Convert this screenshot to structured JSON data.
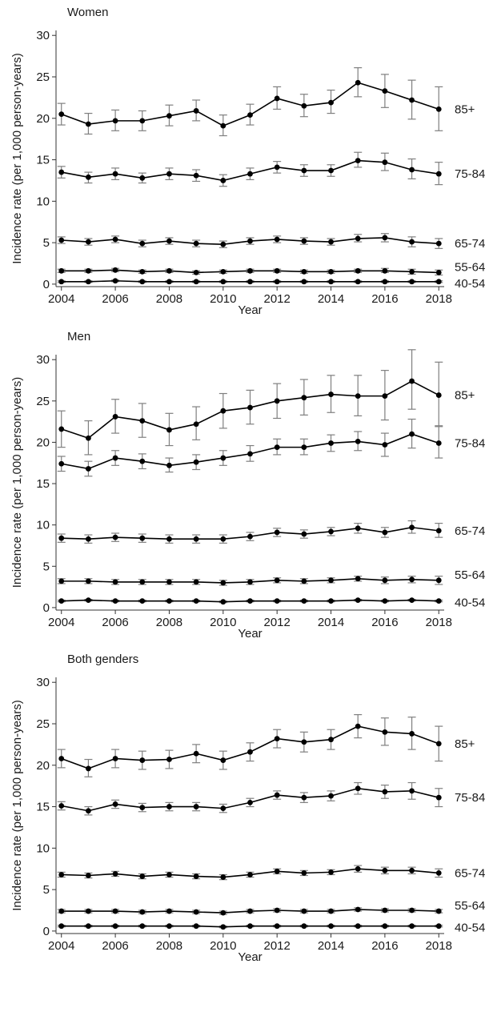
{
  "chart_data": [
    {
      "type": "line",
      "title": "Women",
      "xlabel": "Year",
      "ylabel": "Incidence rate (per 1,000 person-years)",
      "ylim": [
        0,
        30
      ],
      "yticks": [
        0,
        5,
        10,
        15,
        20,
        25,
        30
      ],
      "xticks": [
        2004,
        2006,
        2008,
        2010,
        2012,
        2014,
        2016,
        2018
      ],
      "x": [
        2004,
        2005,
        2006,
        2007,
        2008,
        2009,
        2010,
        2011,
        2012,
        2013,
        2014,
        2015,
        2016,
        2017,
        2018
      ],
      "series": [
        {
          "name": "85+",
          "values": [
            20.5,
            19.3,
            19.7,
            19.7,
            20.3,
            20.9,
            19.1,
            20.4,
            22.4,
            21.5,
            21.9,
            24.3,
            23.3,
            22.2,
            21.1
          ],
          "lower": [
            19.2,
            18.1,
            18.5,
            18.5,
            19.1,
            19.7,
            17.9,
            19.2,
            21.1,
            20.2,
            20.6,
            22.6,
            21.3,
            19.9,
            18.5
          ],
          "upper": [
            21.8,
            20.6,
            21.0,
            20.9,
            21.6,
            22.2,
            20.4,
            21.7,
            23.8,
            22.9,
            23.4,
            26.1,
            25.3,
            24.6,
            23.8
          ]
        },
        {
          "name": "75-84",
          "values": [
            13.5,
            12.9,
            13.3,
            12.8,
            13.3,
            13.1,
            12.5,
            13.3,
            14.1,
            13.7,
            13.7,
            14.9,
            14.7,
            13.8,
            13.3
          ],
          "lower": [
            12.8,
            12.2,
            12.6,
            12.2,
            12.6,
            12.4,
            11.8,
            12.6,
            13.4,
            13.0,
            13.0,
            14.1,
            13.7,
            12.7,
            12.0
          ],
          "upper": [
            14.2,
            13.5,
            14.0,
            13.4,
            14.0,
            13.8,
            13.2,
            14.0,
            14.8,
            14.4,
            14.4,
            15.9,
            15.8,
            15.1,
            14.7
          ]
        },
        {
          "name": "65-74",
          "values": [
            5.3,
            5.1,
            5.4,
            4.9,
            5.2,
            4.9,
            4.8,
            5.2,
            5.4,
            5.2,
            5.1,
            5.5,
            5.6,
            5.1,
            4.9
          ],
          "lower": [
            4.9,
            4.7,
            5.0,
            4.5,
            4.8,
            4.5,
            4.4,
            4.8,
            5.0,
            4.8,
            4.7,
            5.1,
            5.1,
            4.5,
            4.3
          ],
          "upper": [
            5.7,
            5.5,
            5.8,
            5.3,
            5.6,
            5.3,
            5.2,
            5.6,
            5.8,
            5.6,
            5.5,
            6.0,
            6.1,
            5.7,
            5.5
          ]
        },
        {
          "name": "55-64",
          "values": [
            1.6,
            1.6,
            1.7,
            1.5,
            1.6,
            1.4,
            1.5,
            1.6,
            1.6,
            1.5,
            1.5,
            1.6,
            1.6,
            1.5,
            1.4
          ],
          "lower": [
            1.4,
            1.4,
            1.5,
            1.3,
            1.4,
            1.2,
            1.3,
            1.4,
            1.4,
            1.3,
            1.3,
            1.4,
            1.4,
            1.2,
            1.1
          ],
          "upper": [
            1.8,
            1.8,
            1.9,
            1.7,
            1.8,
            1.6,
            1.7,
            1.8,
            1.8,
            1.7,
            1.7,
            1.8,
            1.9,
            1.8,
            1.7
          ]
        },
        {
          "name": "40-54",
          "values": [
            0.3,
            0.3,
            0.4,
            0.3,
            0.3,
            0.3,
            0.3,
            0.3,
            0.3,
            0.3,
            0.3,
            0.3,
            0.3,
            0.3,
            0.3
          ],
          "lower": [
            0.2,
            0.2,
            0.3,
            0.2,
            0.2,
            0.2,
            0.2,
            0.2,
            0.2,
            0.2,
            0.2,
            0.2,
            0.2,
            0.2,
            0.2
          ],
          "upper": [
            0.4,
            0.4,
            0.5,
            0.4,
            0.4,
            0.4,
            0.4,
            0.4,
            0.4,
            0.4,
            0.4,
            0.4,
            0.4,
            0.4,
            0.4
          ]
        }
      ]
    },
    {
      "type": "line",
      "title": "Men",
      "xlabel": "Year",
      "ylabel": "Incidence rate (per 1,000 person-years)",
      "ylim": [
        0,
        30
      ],
      "yticks": [
        0,
        5,
        10,
        15,
        20,
        25,
        30
      ],
      "xticks": [
        2004,
        2006,
        2008,
        2010,
        2012,
        2014,
        2016,
        2018
      ],
      "x": [
        2004,
        2005,
        2006,
        2007,
        2008,
        2009,
        2010,
        2011,
        2012,
        2013,
        2014,
        2015,
        2016,
        2017,
        2018
      ],
      "series": [
        {
          "name": "85+",
          "values": [
            21.6,
            20.5,
            23.1,
            22.6,
            21.5,
            22.2,
            23.8,
            24.2,
            25.0,
            25.4,
            25.8,
            25.6,
            25.6,
            27.4,
            25.7
          ],
          "lower": [
            19.4,
            18.5,
            21.1,
            20.6,
            19.6,
            20.3,
            21.7,
            22.2,
            22.9,
            23.3,
            23.6,
            23.2,
            22.7,
            24.0,
            22.0
          ],
          "upper": [
            23.8,
            22.6,
            25.2,
            24.7,
            23.5,
            24.3,
            25.9,
            26.3,
            27.1,
            27.6,
            28.1,
            28.1,
            28.7,
            31.2,
            29.7
          ]
        },
        {
          "name": "75-84",
          "values": [
            17.4,
            16.8,
            18.1,
            17.7,
            17.2,
            17.6,
            18.1,
            18.6,
            19.4,
            19.4,
            19.9,
            20.1,
            19.7,
            21.0,
            19.9
          ],
          "lower": [
            16.5,
            15.9,
            17.2,
            16.8,
            16.4,
            16.7,
            17.2,
            17.7,
            18.5,
            18.5,
            18.9,
            19.0,
            18.3,
            19.3,
            18.1
          ],
          "upper": [
            18.3,
            17.7,
            19.0,
            18.6,
            18.1,
            18.5,
            19.0,
            19.6,
            20.4,
            20.4,
            20.9,
            21.3,
            21.1,
            22.8,
            21.9
          ]
        },
        {
          "name": "65-74",
          "values": [
            8.4,
            8.3,
            8.5,
            8.4,
            8.3,
            8.3,
            8.3,
            8.6,
            9.1,
            8.9,
            9.2,
            9.6,
            9.1,
            9.7,
            9.3
          ],
          "lower": [
            7.9,
            7.8,
            8.0,
            7.9,
            7.8,
            7.8,
            7.8,
            8.1,
            8.6,
            8.4,
            8.7,
            9.0,
            8.5,
            9.0,
            8.5
          ],
          "upper": [
            8.9,
            8.8,
            9.0,
            8.9,
            8.8,
            8.8,
            8.8,
            9.1,
            9.6,
            9.4,
            9.7,
            10.2,
            9.7,
            10.5,
            10.2
          ]
        },
        {
          "name": "55-64",
          "values": [
            3.2,
            3.2,
            3.1,
            3.1,
            3.1,
            3.1,
            3.0,
            3.1,
            3.3,
            3.2,
            3.3,
            3.5,
            3.3,
            3.4,
            3.3
          ],
          "lower": [
            2.9,
            2.9,
            2.8,
            2.8,
            2.8,
            2.8,
            2.7,
            2.8,
            3.0,
            2.9,
            3.0,
            3.2,
            2.9,
            3.0,
            2.8
          ],
          "upper": [
            3.5,
            3.5,
            3.4,
            3.4,
            3.4,
            3.4,
            3.3,
            3.4,
            3.6,
            3.5,
            3.6,
            3.8,
            3.7,
            3.8,
            3.8
          ]
        },
        {
          "name": "40-54",
          "values": [
            0.8,
            0.9,
            0.8,
            0.8,
            0.8,
            0.8,
            0.7,
            0.8,
            0.8,
            0.8,
            0.8,
            0.9,
            0.8,
            0.9,
            0.8
          ],
          "lower": [
            0.7,
            0.8,
            0.7,
            0.7,
            0.7,
            0.7,
            0.6,
            0.7,
            0.7,
            0.7,
            0.7,
            0.8,
            0.7,
            0.8,
            0.7
          ],
          "upper": [
            0.9,
            1.0,
            0.9,
            0.9,
            0.9,
            0.9,
            0.8,
            0.9,
            0.9,
            0.9,
            0.9,
            1.0,
            0.9,
            1.0,
            0.9
          ]
        }
      ]
    },
    {
      "type": "line",
      "title": "Both genders",
      "xlabel": "Year",
      "ylabel": "Incidence rate (per 1,000 person-years)",
      "ylim": [
        0,
        30
      ],
      "yticks": [
        0,
        5,
        10,
        15,
        20,
        25,
        30
      ],
      "xticks": [
        2004,
        2006,
        2008,
        2010,
        2012,
        2014,
        2016,
        2018
      ],
      "x": [
        2004,
        2005,
        2006,
        2007,
        2008,
        2009,
        2010,
        2011,
        2012,
        2013,
        2014,
        2015,
        2016,
        2017,
        2018
      ],
      "series": [
        {
          "name": "85+",
          "values": [
            20.8,
            19.6,
            20.8,
            20.6,
            20.7,
            21.4,
            20.6,
            21.6,
            23.2,
            22.8,
            23.1,
            24.7,
            24.0,
            23.8,
            22.6
          ],
          "lower": [
            19.7,
            18.6,
            19.7,
            19.5,
            19.6,
            20.3,
            19.5,
            20.5,
            22.1,
            21.6,
            21.9,
            23.3,
            22.4,
            21.9,
            20.5
          ],
          "upper": [
            21.9,
            20.7,
            21.9,
            21.7,
            21.8,
            22.5,
            21.7,
            22.7,
            24.3,
            24.0,
            24.3,
            26.1,
            25.7,
            25.8,
            24.7
          ]
        },
        {
          "name": "75-84",
          "values": [
            15.1,
            14.5,
            15.3,
            14.9,
            15.0,
            15.0,
            14.8,
            15.5,
            16.4,
            16.1,
            16.3,
            17.2,
            16.8,
            16.9,
            16.1
          ],
          "lower": [
            14.6,
            14.0,
            14.8,
            14.4,
            14.5,
            14.5,
            14.3,
            15.0,
            15.9,
            15.5,
            15.7,
            16.5,
            16.0,
            15.9,
            15.0
          ],
          "upper": [
            15.6,
            15.0,
            15.8,
            15.4,
            15.5,
            15.5,
            15.3,
            16.0,
            16.9,
            16.7,
            16.9,
            17.9,
            17.6,
            17.9,
            17.2
          ]
        },
        {
          "name": "65-74",
          "values": [
            6.8,
            6.7,
            6.9,
            6.6,
            6.8,
            6.6,
            6.5,
            6.8,
            7.2,
            7.0,
            7.1,
            7.5,
            7.3,
            7.3,
            7.0
          ],
          "lower": [
            6.5,
            6.4,
            6.6,
            6.3,
            6.5,
            6.3,
            6.2,
            6.5,
            6.9,
            6.7,
            6.8,
            7.1,
            6.9,
            6.9,
            6.5
          ],
          "upper": [
            7.1,
            7.0,
            7.2,
            6.9,
            7.1,
            6.9,
            6.8,
            7.1,
            7.5,
            7.3,
            7.4,
            7.9,
            7.7,
            7.7,
            7.5
          ]
        },
        {
          "name": "55-64",
          "values": [
            2.4,
            2.4,
            2.4,
            2.3,
            2.4,
            2.3,
            2.2,
            2.4,
            2.5,
            2.4,
            2.4,
            2.6,
            2.5,
            2.5,
            2.4
          ],
          "lower": [
            2.2,
            2.2,
            2.2,
            2.1,
            2.2,
            2.1,
            2.0,
            2.2,
            2.3,
            2.2,
            2.2,
            2.4,
            2.3,
            2.3,
            2.2
          ],
          "upper": [
            2.6,
            2.6,
            2.6,
            2.5,
            2.6,
            2.5,
            2.4,
            2.6,
            2.7,
            2.6,
            2.6,
            2.8,
            2.7,
            2.7,
            2.6
          ]
        },
        {
          "name": "40-54",
          "values": [
            0.6,
            0.6,
            0.6,
            0.6,
            0.6,
            0.6,
            0.5,
            0.6,
            0.6,
            0.6,
            0.6,
            0.6,
            0.6,
            0.6,
            0.6
          ],
          "lower": [
            0.5,
            0.5,
            0.5,
            0.5,
            0.5,
            0.5,
            0.4,
            0.5,
            0.5,
            0.5,
            0.5,
            0.5,
            0.5,
            0.5,
            0.5
          ],
          "upper": [
            0.7,
            0.7,
            0.7,
            0.7,
            0.7,
            0.7,
            0.6,
            0.7,
            0.7,
            0.7,
            0.7,
            0.7,
            0.7,
            0.7,
            0.7
          ]
        }
      ]
    }
  ],
  "colors": {
    "line": "#000000",
    "error_bar": "#7f7f7f",
    "axis": "#333333"
  }
}
